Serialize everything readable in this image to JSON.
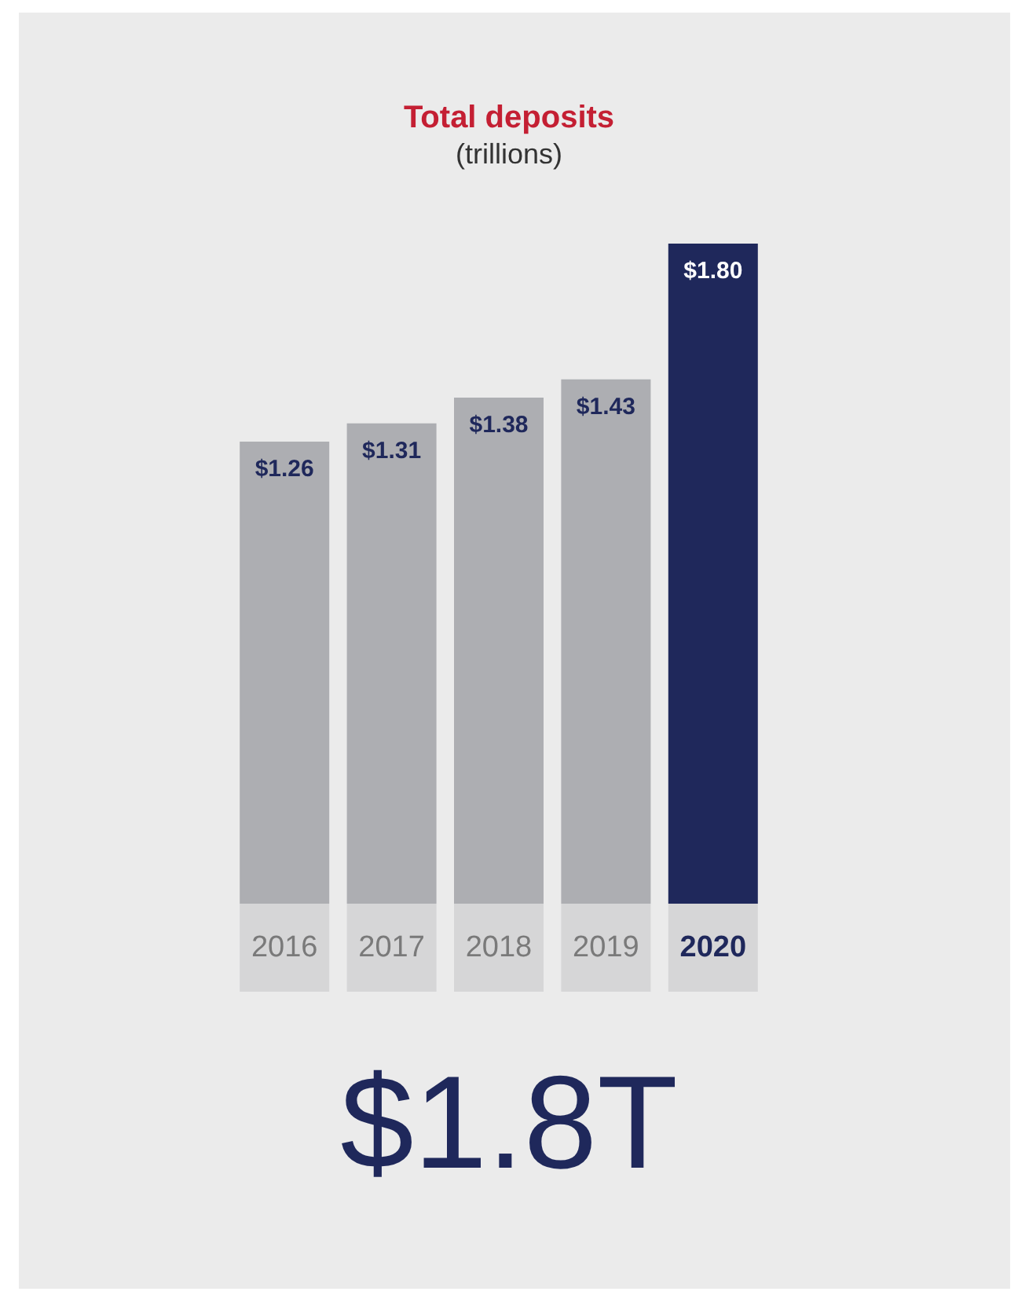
{
  "chart_data": {
    "type": "bar",
    "title": "Total deposits",
    "subtitle": "(trillions)",
    "categories": [
      "2016",
      "2017",
      "2018",
      "2019",
      "2020"
    ],
    "values": [
      1.26,
      1.31,
      1.38,
      1.43,
      1.8
    ],
    "colors": [
      "#adaeb2",
      "#adaeb2",
      "#adaeb2",
      "#adaeb2",
      "#1f285b"
    ],
    "value_labels": [
      "$1.26",
      "$1.31",
      "$1.38",
      "$1.43",
      "$1.80"
    ],
    "annotations": [
      "$1.8T"
    ]
  }
}
